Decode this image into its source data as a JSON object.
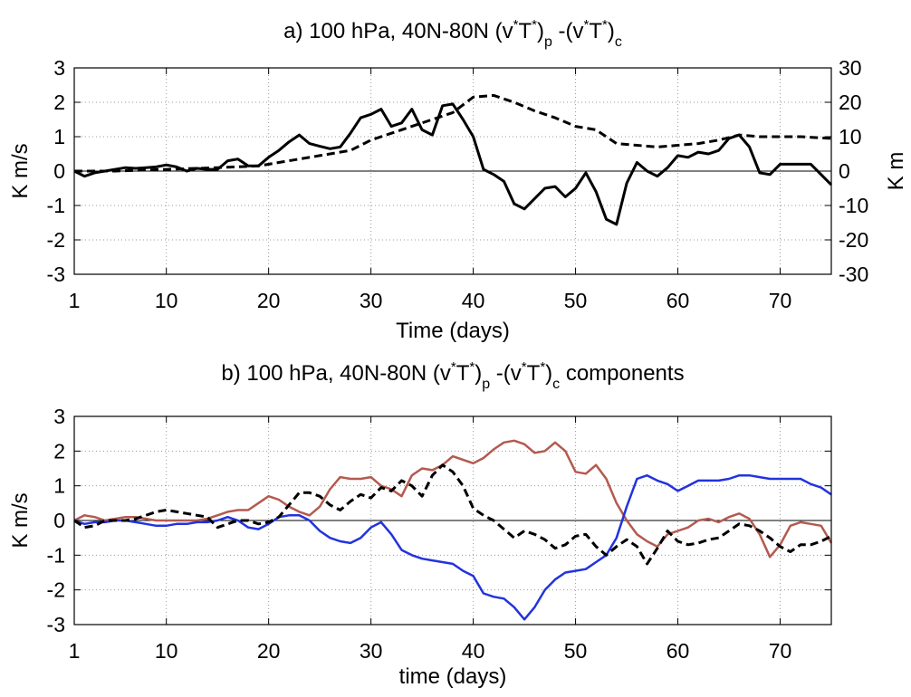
{
  "chart_data": [
    {
      "type": "line",
      "title_parts": [
        "a) 100 hPa, 40N-80N (v",
        "*",
        "T",
        "*",
        ")",
        "p",
        " -(v",
        "*",
        "T",
        "*",
        ")",
        "c"
      ],
      "xlabel": "Time (days)",
      "ylabel": "K m/s",
      "y2label": "K m",
      "xlim": [
        1,
        75
      ],
      "ylim": [
        -3,
        3
      ],
      "y2lim": [
        -30,
        30
      ],
      "xticks": [
        1,
        10,
        20,
        30,
        40,
        50,
        60,
        70
      ],
      "yticks": [
        -3,
        -2,
        -1,
        0,
        1,
        2,
        3
      ],
      "y2ticks": [
        -30,
        -20,
        -10,
        0,
        10,
        20,
        30
      ],
      "grid": true,
      "series": [
        {
          "color": "#000000",
          "style": "solid",
          "axis": "left",
          "x": [
            1,
            2,
            3,
            4,
            5,
            6,
            7,
            8,
            9,
            10,
            11,
            12,
            13,
            14,
            15,
            16,
            17,
            18,
            19,
            20,
            21,
            22,
            23,
            24,
            25,
            26,
            27,
            28,
            29,
            30,
            31,
            32,
            33,
            34,
            35,
            36,
            37,
            38,
            39,
            40,
            41,
            42,
            43,
            44,
            45,
            46,
            47,
            48,
            49,
            50,
            51,
            52,
            53,
            54,
            55,
            56,
            57,
            58,
            59,
            60,
            61,
            62,
            63,
            64,
            65,
            66,
            67,
            68,
            69,
            70,
            71,
            72,
            73,
            74,
            75
          ],
          "y": [
            0,
            -0.15,
            -0.05,
            0,
            0.05,
            0.1,
            0.08,
            0.1,
            0.12,
            0.18,
            0.12,
            0,
            0.08,
            0.05,
            0.05,
            0.3,
            0.35,
            0.15,
            0.15,
            0.4,
            0.6,
            0.85,
            1.05,
            0.8,
            0.72,
            0.65,
            0.7,
            1.1,
            1.55,
            1.65,
            1.8,
            1.3,
            1.4,
            1.8,
            1.2,
            1.05,
            1.9,
            1.95,
            1.5,
            1.0,
            0.05,
            -0.1,
            -0.3,
            -0.95,
            -1.1,
            -0.8,
            -0.5,
            -0.45,
            -0.75,
            -0.5,
            -0.05,
            -0.6,
            -1.4,
            -1.55,
            -0.35,
            0.25,
            0,
            -0.15,
            0.1,
            0.45,
            0.4,
            0.55,
            0.5,
            0.6,
            0.95,
            1.05,
            0.7,
            -0.05,
            -0.1,
            0.2,
            0.2,
            0.2,
            0.2,
            -0.1,
            -0.4
          ]
        },
        {
          "color": "#000000",
          "style": "dashed",
          "axis": "right",
          "x": [
            1,
            5,
            10,
            15,
            19,
            22,
            25,
            28,
            30,
            32,
            34,
            36,
            38,
            40,
            42,
            44,
            46,
            48,
            50,
            52,
            54,
            56,
            58,
            60,
            62,
            64,
            66,
            68,
            70,
            72,
            75
          ],
          "y": [
            0,
            0,
            0.5,
            1,
            1.5,
            3,
            4.5,
            6,
            9,
            11,
            13,
            15,
            17,
            21.5,
            22,
            20,
            17.5,
            15.5,
            13,
            12,
            8,
            7.5,
            7,
            7.5,
            8,
            9,
            10.5,
            10,
            10,
            10,
            9.5
          ]
        }
      ]
    },
    {
      "type": "line",
      "title_parts": [
        "b) 100 hPa, 40N-80N (v",
        "*",
        "T",
        "*",
        ")",
        "p",
        " -(v",
        "*",
        "T",
        "*",
        ")",
        "c",
        " components"
      ],
      "xlabel": "time (days)",
      "ylabel": "K m/s",
      "xlim": [
        1,
        75
      ],
      "ylim": [
        -3,
        3
      ],
      "xticks": [
        1,
        10,
        20,
        30,
        40,
        50,
        60,
        70
      ],
      "yticks": [
        -3,
        -2,
        -1,
        0,
        1,
        2,
        3
      ],
      "grid": true,
      "series": [
        {
          "color": "#b35a4f",
          "style": "solid",
          "x": [
            1,
            2,
            3,
            4,
            5,
            6,
            7,
            8,
            9,
            10,
            11,
            12,
            13,
            14,
            15,
            16,
            17,
            18,
            19,
            20,
            21,
            22,
            23,
            24,
            25,
            26,
            27,
            28,
            29,
            30,
            31,
            32,
            33,
            34,
            35,
            36,
            37,
            38,
            39,
            40,
            41,
            42,
            43,
            44,
            45,
            46,
            47,
            48,
            49,
            50,
            51,
            52,
            53,
            54,
            55,
            56,
            57,
            58,
            59,
            60,
            61,
            62,
            63,
            64,
            65,
            66,
            67,
            68,
            69,
            70,
            71,
            72,
            73,
            74,
            75
          ],
          "y": [
            0,
            0.15,
            0.1,
            0,
            0.05,
            0.1,
            0.1,
            0.05,
            0,
            0,
            0,
            0,
            0,
            0.05,
            0.15,
            0.25,
            0.3,
            0.3,
            0.5,
            0.7,
            0.6,
            0.4,
            0.25,
            0.15,
            0.4,
            0.9,
            1.25,
            1.2,
            1.2,
            1.25,
            1.0,
            0.9,
            0.7,
            1.3,
            1.5,
            1.45,
            1.6,
            1.85,
            1.75,
            1.65,
            1.8,
            2.05,
            2.25,
            2.3,
            2.2,
            1.95,
            2.0,
            2.25,
            2.0,
            1.4,
            1.35,
            1.6,
            1.2,
            0.5,
            0,
            -0.4,
            -0.6,
            -0.75,
            -0.4,
            -0.3,
            -0.2,
            0,
            0.05,
            -0.05,
            0.1,
            0.2,
            0.05,
            -0.4,
            -1.05,
            -0.7,
            -0.15,
            -0.05,
            -0.1,
            -0.15,
            -0.65
          ]
        },
        {
          "color": "#2233dd",
          "style": "solid",
          "x": [
            1,
            2,
            3,
            4,
            5,
            6,
            7,
            8,
            9,
            10,
            11,
            12,
            13,
            14,
            15,
            16,
            17,
            18,
            19,
            20,
            21,
            22,
            23,
            24,
            25,
            26,
            27,
            28,
            29,
            30,
            31,
            32,
            33,
            34,
            35,
            36,
            37,
            38,
            39,
            40,
            41,
            42,
            43,
            44,
            45,
            46,
            47,
            48,
            49,
            50,
            51,
            52,
            53,
            54,
            55,
            56,
            57,
            58,
            59,
            60,
            61,
            62,
            63,
            64,
            65,
            66,
            67,
            68,
            69,
            70,
            71,
            72,
            73,
            74,
            75
          ],
          "y": [
            0,
            -0.1,
            -0.05,
            -0.05,
            0,
            0,
            -0.05,
            -0.1,
            -0.15,
            -0.15,
            -0.1,
            -0.1,
            -0.05,
            -0.05,
            0,
            0.1,
            0,
            -0.2,
            -0.25,
            -0.1,
            0.1,
            0.15,
            0.15,
            0,
            -0.3,
            -0.5,
            -0.6,
            -0.65,
            -0.5,
            -0.2,
            -0.05,
            -0.4,
            -0.85,
            -1.0,
            -1.1,
            -1.15,
            -1.2,
            -1.25,
            -1.45,
            -1.6,
            -2.1,
            -2.2,
            -2.25,
            -2.5,
            -2.85,
            -2.5,
            -2.0,
            -1.7,
            -1.5,
            -1.45,
            -1.4,
            -1.2,
            -1.0,
            -0.5,
            0.4,
            1.2,
            1.3,
            1.15,
            1.05,
            0.85,
            1.0,
            1.15,
            1.15,
            1.15,
            1.2,
            1.3,
            1.3,
            1.25,
            1.2,
            1.2,
            1.2,
            1.2,
            1.05,
            0.95,
            0.75
          ]
        },
        {
          "color": "#000000",
          "style": "dashed",
          "x": [
            1,
            2,
            3,
            4,
            5,
            6,
            7,
            8,
            9,
            10,
            11,
            12,
            13,
            14,
            15,
            16,
            17,
            18,
            19,
            20,
            21,
            22,
            23,
            24,
            25,
            26,
            27,
            28,
            29,
            30,
            31,
            32,
            33,
            34,
            35,
            36,
            37,
            38,
            39,
            40,
            41,
            42,
            43,
            44,
            45,
            46,
            47,
            48,
            49,
            50,
            51,
            52,
            53,
            54,
            55,
            56,
            57,
            58,
            59,
            60,
            61,
            62,
            63,
            64,
            65,
            66,
            67,
            68,
            69,
            70,
            71,
            72,
            73,
            74,
            75
          ],
          "y": [
            0,
            -0.2,
            -0.15,
            0,
            0,
            0,
            0.05,
            0.15,
            0.25,
            0.3,
            0.25,
            0.2,
            0.15,
            0.1,
            -0.2,
            -0.1,
            0,
            0,
            -0.1,
            -0.05,
            0.1,
            0.45,
            0.8,
            0.8,
            0.7,
            0.45,
            0.3,
            0.55,
            0.75,
            0.65,
            0.95,
            0.85,
            1.15,
            1.0,
            0.7,
            1.3,
            1.6,
            1.4,
            1.0,
            0.35,
            0.15,
            0,
            -0.25,
            -0.5,
            -0.3,
            -0.4,
            -0.55,
            -0.8,
            -0.7,
            -0.45,
            -0.4,
            -0.75,
            -1.0,
            -0.75,
            -0.55,
            -0.75,
            -1.25,
            -0.8,
            -0.3,
            -0.6,
            -0.7,
            -0.65,
            -0.55,
            -0.5,
            -0.3,
            -0.1,
            -0.15,
            -0.3,
            -0.5,
            -0.75,
            -0.9,
            -0.7,
            -0.7,
            -0.6,
            -0.45
          ]
        }
      ]
    }
  ]
}
